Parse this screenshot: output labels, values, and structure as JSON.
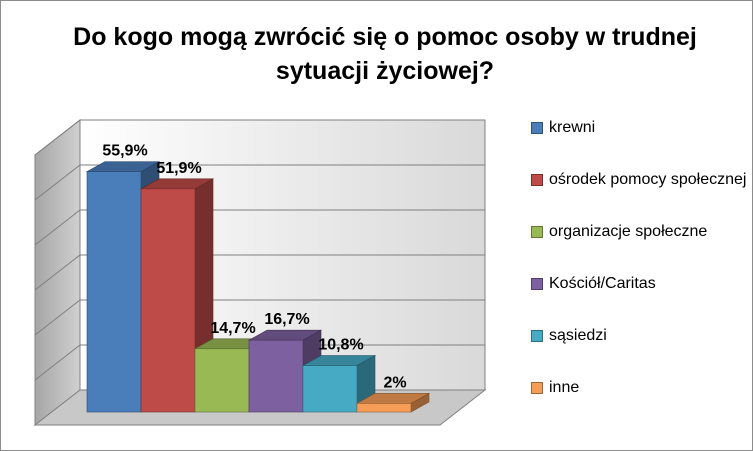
{
  "chart_data": {
    "type": "bar",
    "title": "Do kogo mogą zwrócić się o pomoc osoby w trudnej sytuacji życiowej?",
    "categories": [
      "krewni",
      "ośrodek pomocy społecznej",
      "organizacje społeczne",
      "Kościół/Caritas",
      "sąsiedzi",
      "inne"
    ],
    "values": [
      55.9,
      51.9,
      14.7,
      16.7,
      10.8,
      2
    ],
    "data_labels": [
      "55,9%",
      "51,9%",
      "14,7%",
      "16,7%",
      "10,8%",
      "2%"
    ],
    "colors": [
      "#4a7ebb",
      "#be4b48",
      "#98b954",
      "#7d60a0",
      "#46aac5",
      "#f59d56"
    ],
    "ylim": [
      0,
      60
    ],
    "grid": true,
    "legend_position": "right",
    "style": "3d-column"
  }
}
